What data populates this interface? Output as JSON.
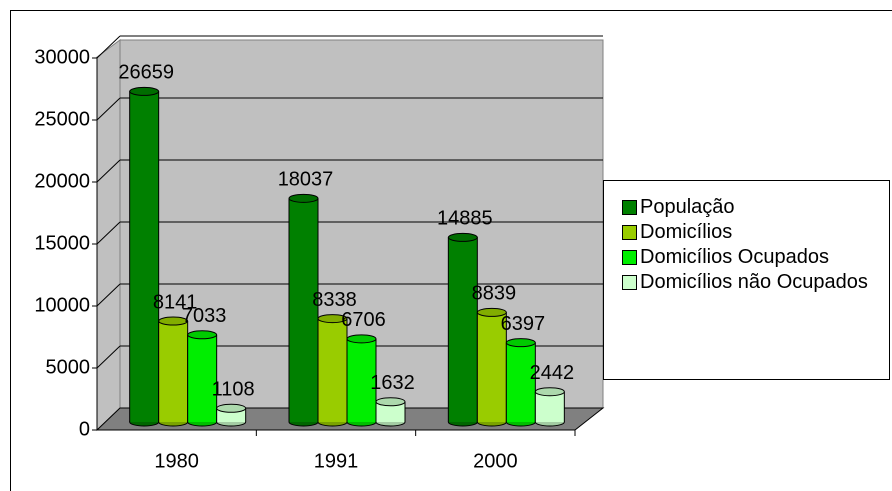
{
  "chart_data": {
    "type": "bar3d",
    "categories": [
      "1980",
      "1991",
      "2000"
    ],
    "series": [
      {
        "name": "População",
        "color": "#008000",
        "values": [
          26659,
          18037,
          14885
        ]
      },
      {
        "name": "Domicílios",
        "color": "#99cc00",
        "values": [
          8141,
          8338,
          8839
        ]
      },
      {
        "name": "Domicílios Ocupados",
        "color": "#00ee00",
        "values": [
          7033,
          6706,
          6397
        ]
      },
      {
        "name": "Domicílios não Ocupados",
        "color": "#ccffcc",
        "values": [
          1108,
          1632,
          2442
        ]
      }
    ],
    "ylim": [
      0,
      30000
    ],
    "yticks": [
      0,
      5000,
      10000,
      15000,
      20000,
      25000,
      30000
    ],
    "grid": true,
    "legend": "right"
  }
}
